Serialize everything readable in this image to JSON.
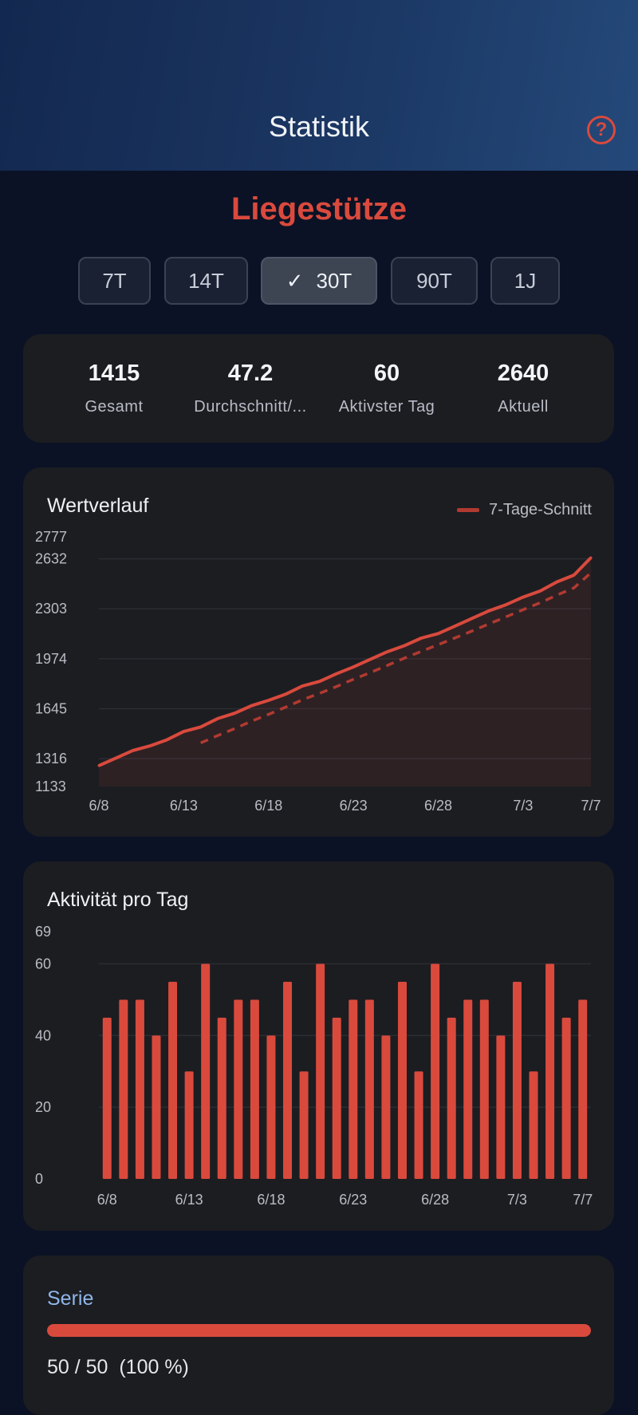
{
  "header": {
    "title": "Statistik",
    "help_icon": "question-circle-icon"
  },
  "exercise": {
    "name": "Liegestütze"
  },
  "ranges": [
    {
      "label": "7T",
      "active": false
    },
    {
      "label": "14T",
      "active": false
    },
    {
      "label": "30T",
      "active": true
    },
    {
      "label": "90T",
      "active": false
    },
    {
      "label": "1J",
      "active": false
    }
  ],
  "stats": [
    {
      "value": "1415",
      "label": "Gesamt"
    },
    {
      "value": "47.2",
      "label": "Durchschnitt/..."
    },
    {
      "value": "60",
      "label": "Aktivster Tag"
    },
    {
      "value": "2640",
      "label": "Aktuell"
    }
  ],
  "colors": {
    "accent": "#d94a3d",
    "background": "#0b1225",
    "card": "#1c1d21",
    "serie_label": "#8fb6ea"
  },
  "line_chart": {
    "title": "Wertverlauf",
    "legend": "7-Tage-Schnitt"
  },
  "bar_chart": {
    "title": "Aktivität pro Tag"
  },
  "serie": {
    "label": "Serie",
    "progress": 1.0,
    "text": "50 / 50  (100 %)"
  },
  "chart_data": [
    {
      "type": "line",
      "title": "Wertverlauf",
      "ylim": [
        1133,
        2777
      ],
      "y_ticks": [
        "2777",
        "2632",
        "2303",
        "1974",
        "1645",
        "1316",
        "1133"
      ],
      "x_ticks": [
        "6/8",
        "6/13",
        "6/18",
        "6/23",
        "6/28",
        "7/3",
        "7/7"
      ],
      "x_dates": [
        "6/8",
        "6/9",
        "6/10",
        "6/11",
        "6/12",
        "6/13",
        "6/14",
        "6/15",
        "6/16",
        "6/17",
        "6/18",
        "6/19",
        "6/20",
        "6/21",
        "6/22",
        "6/23",
        "6/24",
        "6/25",
        "6/26",
        "6/27",
        "6/28",
        "6/29",
        "6/30",
        "7/1",
        "7/2",
        "7/3",
        "7/4",
        "7/5",
        "7/6",
        "7/7"
      ],
      "series": [
        {
          "name": "",
          "values": [
            1270,
            1320,
            1370,
            1400,
            1440,
            1495,
            1525,
            1580,
            1615,
            1665,
            1700,
            1740,
            1795,
            1825,
            1875,
            1920,
            1970,
            2020,
            2060,
            2110,
            2140,
            2190,
            2240,
            2290,
            2330,
            2380,
            2420,
            2480,
            2525,
            2640
          ]
        },
        {
          "name": "7-Tage-Schnitt",
          "values": [
            null,
            null,
            null,
            null,
            null,
            null,
            1420,
            1468,
            1514,
            1563,
            1608,
            1655,
            1704,
            1746,
            1791,
            1839,
            1883,
            1930,
            1978,
            2022,
            2067,
            2112,
            2157,
            2204,
            2250,
            2297,
            2342,
            2393,
            2441,
            2540
          ]
        }
      ]
    },
    {
      "type": "bar",
      "title": "Aktivität pro Tag",
      "ylim": [
        0,
        69
      ],
      "y_ticks": [
        "69",
        "60",
        "40",
        "20",
        "0"
      ],
      "x_ticks": [
        "6/8",
        "6/13",
        "6/18",
        "6/23",
        "6/28",
        "7/3",
        "7/7"
      ],
      "values": [
        45,
        50,
        50,
        40,
        55,
        30,
        60,
        45,
        50,
        50,
        40,
        55,
        30,
        60,
        45,
        50,
        50,
        40,
        55,
        30,
        60,
        45,
        50,
        50,
        40,
        55,
        30,
        60,
        45,
        50
      ]
    }
  ]
}
